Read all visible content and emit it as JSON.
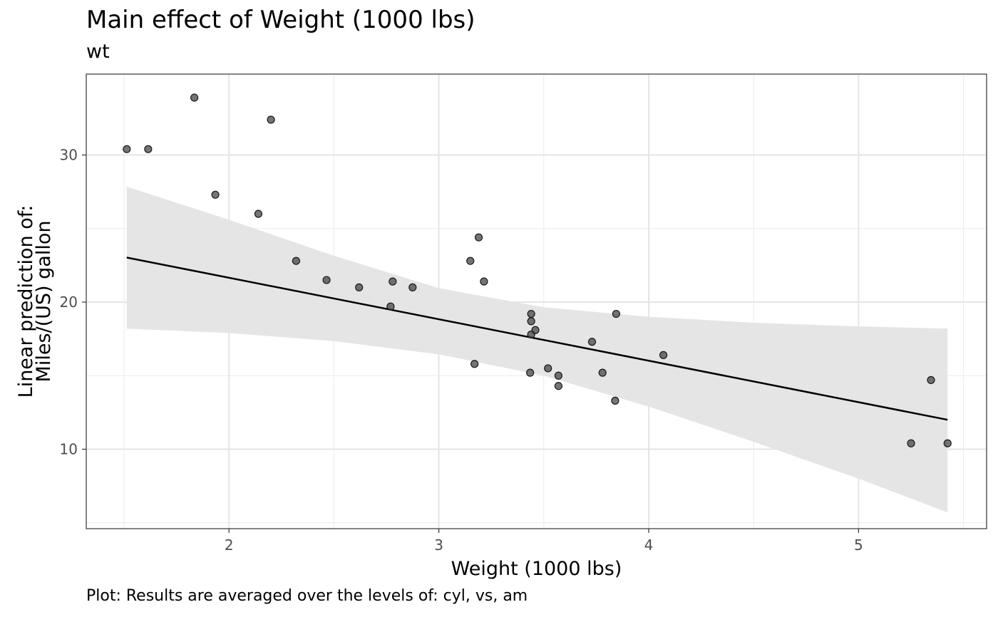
{
  "chart_data": {
    "type": "scatter",
    "title": "Main effect of Weight (1000 lbs)",
    "subtitle": "wt",
    "caption": "Plot: Results are averaged over the levels of: cyl, vs, am",
    "xlabel": "Weight (1000 lbs)",
    "ylabel_lines": [
      "Linear prediction of:",
      "Miles/(US) gallon"
    ],
    "xlim": [
      1.32,
      5.61
    ],
    "ylim": [
      4.6,
      35.5
    ],
    "x_ticks": [
      2,
      3,
      4,
      5
    ],
    "y_ticks": [
      10,
      20,
      30
    ],
    "x_ticks_minor": [
      1.5,
      2.5,
      3.5,
      4.5,
      5.5
    ],
    "y_ticks_minor": [
      5,
      15,
      25
    ],
    "grid": true,
    "points": {
      "color": "#404040",
      "x": [
        1.513,
        1.615,
        1.835,
        1.935,
        2.14,
        2.2,
        2.32,
        2.465,
        2.62,
        2.77,
        2.78,
        2.875,
        3.15,
        3.17,
        3.19,
        3.215,
        3.435,
        3.44,
        3.44,
        3.44,
        3.46,
        3.52,
        3.57,
        3.57,
        3.73,
        3.78,
        3.84,
        3.845,
        4.07,
        5.25,
        5.345,
        5.424
      ],
      "y": [
        30.4,
        30.4,
        33.9,
        27.3,
        26.0,
        32.4,
        22.8,
        21.5,
        21.0,
        19.7,
        21.4,
        21.0,
        22.8,
        15.8,
        24.4,
        21.4,
        15.2,
        17.8,
        18.7,
        19.2,
        18.1,
        15.5,
        15.0,
        14.3,
        17.3,
        15.2,
        13.3,
        19.2,
        16.4,
        10.4,
        14.7,
        10.4
      ]
    },
    "fit_line": {
      "color": "#000000",
      "x": [
        1.513,
        5.424
      ],
      "y": [
        23.03,
        12.0
      ]
    },
    "confidence_band": {
      "color": "#e5e5e5",
      "x": [
        1.513,
        2.0,
        2.5,
        3.0,
        3.5,
        4.0,
        4.5,
        5.0,
        5.424
      ],
      "lower": [
        18.2,
        17.9,
        17.35,
        16.45,
        15.0,
        12.9,
        10.5,
        8.0,
        5.7
      ],
      "upper": [
        27.85,
        25.6,
        23.15,
        20.95,
        19.65,
        19.0,
        18.6,
        18.35,
        18.2
      ]
    }
  }
}
